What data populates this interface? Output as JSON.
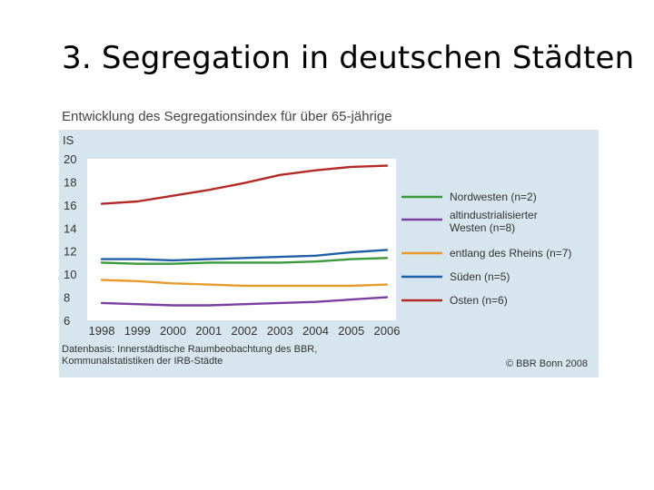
{
  "slide": {
    "title": "3. Segregation in deutschen Städten"
  },
  "chart_data": {
    "type": "line",
    "title": "Entwicklung des Segregationsindex für über 65-jährige",
    "ylabel": "IS",
    "xlabel": "",
    "ylim": [
      6,
      20
    ],
    "yticks": [
      6,
      8,
      10,
      12,
      14,
      16,
      18,
      20
    ],
    "categories": [
      "1998",
      "1999",
      "2000",
      "2001",
      "2002",
      "2003",
      "2004",
      "2005",
      "2006"
    ],
    "grid": false,
    "legend_position": "right",
    "series": [
      {
        "name": "Nordwesten (n=2)",
        "color": "#3a9a3a",
        "values": [
          11.0,
          10.9,
          10.9,
          11.0,
          11.0,
          11.0,
          11.1,
          11.3,
          11.4
        ]
      },
      {
        "name": "altindustrialisierter Westen (n=8)",
        "color": "#7b3ea3",
        "values": [
          7.5,
          7.4,
          7.3,
          7.3,
          7.4,
          7.5,
          7.6,
          7.8,
          8.0
        ]
      },
      {
        "name": "entlang des Rheins (n=7)",
        "color": "#e89a2a",
        "values": [
          9.5,
          9.4,
          9.2,
          9.1,
          9.0,
          9.0,
          9.0,
          9.0,
          9.1
        ]
      },
      {
        "name": "Süden (n=5)",
        "color": "#1f5fa8",
        "values": [
          11.3,
          11.3,
          11.2,
          11.3,
          11.4,
          11.5,
          11.6,
          11.9,
          12.1
        ]
      },
      {
        "name": "Osten (n=6)",
        "color": "#b32a25",
        "values": [
          16.1,
          16.3,
          16.8,
          17.3,
          17.9,
          18.6,
          19.0,
          19.3,
          19.4
        ]
      }
    ],
    "source": "Datenbasis: Innerstädtische Raumbeobachtung des BBR, Kommunalstatistiken der IRB-Städte",
    "copyright": "© BBR Bonn 2008"
  },
  "legend_display": [
    [
      "Nordwesten (n=2)"
    ],
    [
      "altindustrialisierter",
      "Westen (n=8)"
    ],
    [
      "entlang des Rheins (n=7)"
    ],
    [
      "Süden (n=5)"
    ],
    [
      "Osten (n=6)"
    ]
  ],
  "footnote_lines": [
    "Datenbasis: Innerstädtische Raumbeobachtung des BBR,",
    "Kommunalstatistiken der IRB-Städte"
  ]
}
